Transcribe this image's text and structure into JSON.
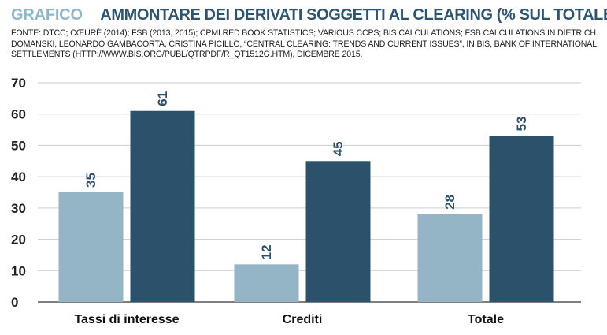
{
  "header": {
    "tag": "GRAFICO",
    "title": "AMMONTARE DEI DERIVATI SOGGETTI AL CLEARING (% SUL TOTALE)",
    "source": "FONTE: DTCC; CŒURÉ (2014); FSB (2013, 2015); CPMI RED BOOK STATISTICS; VARIOUS CCPS; BIS CALCULATIONS; FSB CALCULATIONS IN DIETRICH DOMANSKI, LEONARDO GAMBACORTA, CRISTINA PICILLO, “CENTRAL CLEARING: TRENDS AND CURRENT ISSUES”, IN BIS, BANK OF INTERNATIONAL SETTLEMENTS (HTTP://WWW.BIS.ORG/PUBL/QTRPDF/R_QT1512G.HTM), DICEMBRE 2015."
  },
  "colors": {
    "tag": "#8cb8c9",
    "title": "#2b5470",
    "light_bar": "#93b5c6",
    "dark_bar": "#2c516b",
    "grid": "#cccccc",
    "axis": "#555555"
  },
  "chart_data": {
    "type": "bar",
    "categories": [
      "Tassi di interesse",
      "Crediti",
      "Totale"
    ],
    "series": [
      {
        "values": [
          35,
          12,
          28
        ],
        "color": "#93b5c6"
      },
      {
        "values": [
          61,
          45,
          53
        ],
        "color": "#2c516b"
      }
    ],
    "yticks": [
      0,
      10,
      20,
      30,
      40,
      50,
      60,
      70
    ],
    "ylim": [
      0,
      70
    ],
    "grid": true,
    "data_labels": true,
    "data_label_orientation": "vertical"
  }
}
